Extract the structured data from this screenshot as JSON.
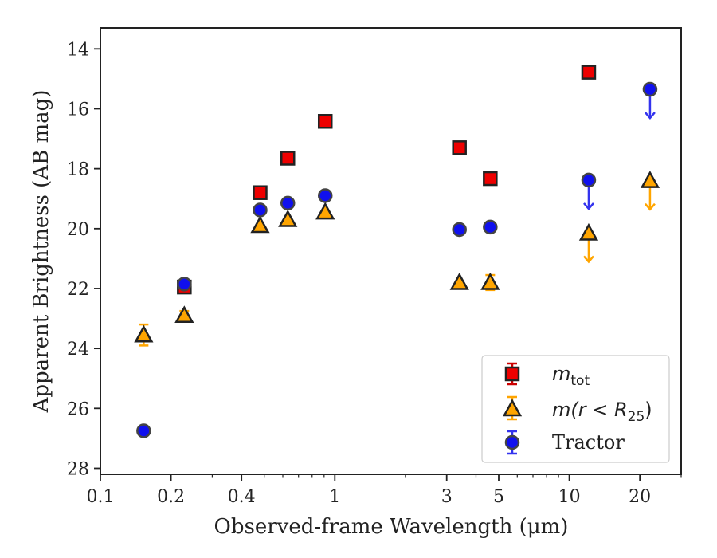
{
  "chart_data": {
    "type": "scatter",
    "xlabel": "Observed-frame Wavelength (μm)",
    "ylabel": "Apparent Brightness (AB mag)",
    "xscale": "log",
    "xlim": [
      0.1,
      30
    ],
    "ylim": [
      28.2,
      13.3
    ],
    "y_inverted": true,
    "xticks": [
      {
        "value": 0.1,
        "label": "0.1"
      },
      {
        "value": 0.2,
        "label": "0.2"
      },
      {
        "value": 0.4,
        "label": "0.4"
      },
      {
        "value": 1,
        "label": "1"
      },
      {
        "value": 3,
        "label": "3"
      },
      {
        "value": 5,
        "label": "5"
      },
      {
        "value": 10,
        "label": "10"
      },
      {
        "value": 20,
        "label": "20"
      }
    ],
    "yticks": [
      {
        "value": 14,
        "label": "14"
      },
      {
        "value": 16,
        "label": "16"
      },
      {
        "value": 18,
        "label": "18"
      },
      {
        "value": 20,
        "label": "20"
      },
      {
        "value": 22,
        "label": "22"
      },
      {
        "value": 24,
        "label": "24"
      },
      {
        "value": 26,
        "label": "26"
      },
      {
        "value": 28,
        "label": "28"
      }
    ],
    "grid": false,
    "legend_position": "lower-right",
    "series": [
      {
        "name": "m_tot",
        "marker": "square",
        "color": "#ee0000",
        "edge": "#222222",
        "errcolor": "#cc0000",
        "points": [
          {
            "x": 0.228,
            "y": 21.95,
            "err": 0.15
          },
          {
            "x": 0.48,
            "y": 18.8
          },
          {
            "x": 0.63,
            "y": 17.65
          },
          {
            "x": 0.91,
            "y": 16.42
          },
          {
            "x": 3.4,
            "y": 17.3
          },
          {
            "x": 4.6,
            "y": 18.33
          },
          {
            "x": 12.1,
            "y": 14.78
          }
        ]
      },
      {
        "name": "m(r<R25)",
        "marker": "triangle",
        "color": "#ffa500",
        "edge": "#222222",
        "errcolor": "#ffa500",
        "points": [
          {
            "x": 0.153,
            "y": 23.55,
            "err": 0.35
          },
          {
            "x": 0.228,
            "y": 22.9,
            "err": 0.15
          },
          {
            "x": 0.48,
            "y": 19.9
          },
          {
            "x": 0.63,
            "y": 19.7
          },
          {
            "x": 0.91,
            "y": 19.45
          },
          {
            "x": 3.4,
            "y": 21.8
          },
          {
            "x": 4.6,
            "y": 21.8,
            "err": 0.25
          },
          {
            "x": 12.1,
            "y": 20.15,
            "upper_limit": true
          },
          {
            "x": 22.1,
            "y": 18.4,
            "upper_limit": true
          }
        ]
      },
      {
        "name": "Tractor",
        "marker": "circle",
        "color": "#1010ee",
        "edge": "#444444",
        "errcolor": "#3333ee",
        "points": [
          {
            "x": 0.153,
            "y": 26.75
          },
          {
            "x": 0.228,
            "y": 21.85
          },
          {
            "x": 0.48,
            "y": 19.38
          },
          {
            "x": 0.63,
            "y": 19.15
          },
          {
            "x": 0.91,
            "y": 18.9
          },
          {
            "x": 3.4,
            "y": 20.03
          },
          {
            "x": 4.6,
            "y": 19.95
          },
          {
            "x": 12.1,
            "y": 18.38,
            "upper_limit": true
          },
          {
            "x": 22.1,
            "y": 15.35,
            "upper_limit": true
          }
        ]
      }
    ]
  },
  "legend": {
    "m_tot_main": "m",
    "m_tot_sub": "tot",
    "m_r_main": "m(r < R",
    "m_r_sub": "25",
    "m_r_close": ")",
    "tractor": "Tractor"
  }
}
